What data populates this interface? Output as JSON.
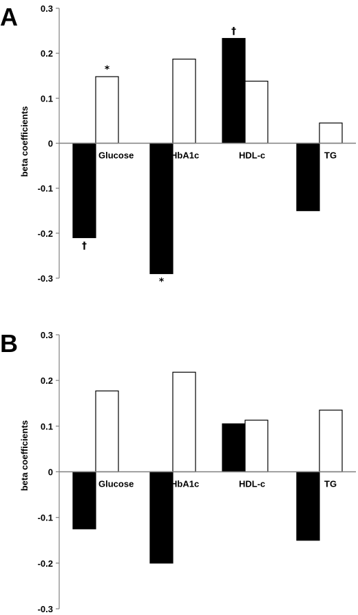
{
  "chart_data": [
    {
      "type": "bar",
      "panel": "A",
      "ylabel": "beta coefficients",
      "ylim": [
        -0.3,
        0.3
      ],
      "yticks": [
        "0.3",
        "0.2",
        "0.1",
        "0",
        "-0.1",
        "-0.2",
        "-0.3"
      ],
      "categories": [
        "Glucose",
        "HbA1c",
        "HDL-c",
        "TG"
      ],
      "series": [
        {
          "fill": "#000000",
          "values": [
            -0.21,
            -0.29,
            0.233,
            -0.15
          ],
          "marks": [
            "†",
            "*",
            "†",
            ""
          ]
        },
        {
          "fill": "#ffffff",
          "values": [
            0.148,
            0.187,
            0.138,
            0.045
          ],
          "marks": [
            "*",
            "",
            "",
            ""
          ]
        }
      ]
    },
    {
      "type": "bar",
      "panel": "B",
      "ylabel": "beta coefficients",
      "ylim": [
        -0.3,
        0.3
      ],
      "yticks": [
        "0.3",
        "0.2",
        "0.1",
        "0",
        "-0.1",
        "-0.2",
        "-0.3"
      ],
      "categories": [
        "Glucose",
        "HbA1c",
        "HDL-c",
        "TG"
      ],
      "series": [
        {
          "fill": "#000000",
          "values": [
            -0.125,
            -0.2,
            0.105,
            -0.15
          ],
          "marks": [
            "",
            "",
            "",
            ""
          ]
        },
        {
          "fill": "#ffffff",
          "values": [
            0.177,
            0.218,
            0.113,
            0.135
          ],
          "marks": [
            "",
            "",
            "",
            ""
          ]
        }
      ]
    }
  ]
}
